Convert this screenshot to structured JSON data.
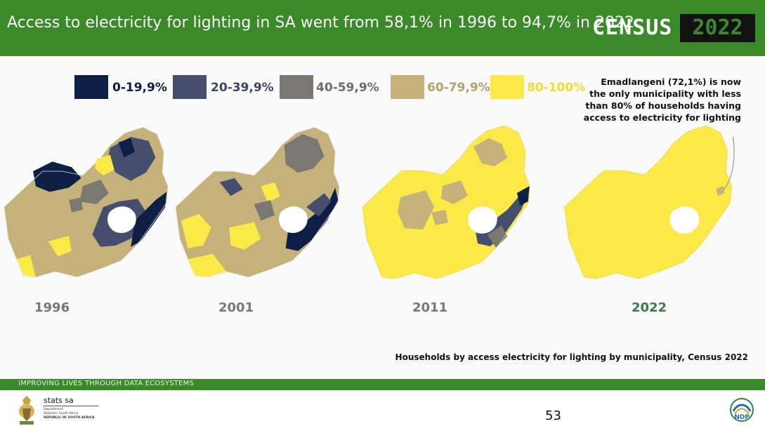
{
  "title": "Access to electricity for lighting in SA went from 58,1% in 1996 to 94,7% in 2022",
  "brand": {
    "word": "CENSUS",
    "year": "2022"
  },
  "legend": [
    {
      "label": "0-19,9%",
      "color": "#0d1f45",
      "text_color": "#0d1f45"
    },
    {
      "label": "20-39,9%",
      "color": "#454f6d",
      "text_color": "#3b4566"
    },
    {
      "label": "40-59,9%",
      "color": "#7b7873",
      "text_color": "#6e6c68"
    },
    {
      "label": "60-79,9%",
      "color": "#c4b27a",
      "text_color": "#b5a167"
    },
    {
      "label": "80-100%",
      "color": "#fbe947",
      "text_color": "#f2dc2e"
    }
  ],
  "note": "Emadlangeni (72,1%) is now the only municipality with less than 80% of households having access to electricity for lighting",
  "maps": [
    {
      "year": "1996",
      "base_color": "#c4b27a",
      "year_color": "#777777"
    },
    {
      "year": "2001",
      "base_color": "#c4b27a",
      "year_color": "#777777"
    },
    {
      "year": "2011",
      "base_color": "#fbe947",
      "year_color": "#777777"
    },
    {
      "year": "2022",
      "base_color": "#fbe947",
      "year_color": "#3f7a4d"
    }
  ],
  "source": "Households by access electricity for lighting by municipality, Census 2022",
  "footer": {
    "tagline": "IMPROVING LIVES THROUGH DATA ECOSYSTEMS",
    "org_name": "stats sa",
    "org_sub1": "Department:",
    "org_sub2": "Statistics South Africa",
    "org_sub3": "REPUBLIC OF SOUTH AFRICA",
    "page_number": "53",
    "ndp_logo": "NDP"
  },
  "colors": {
    "brand_green": "#3a8a2a"
  }
}
